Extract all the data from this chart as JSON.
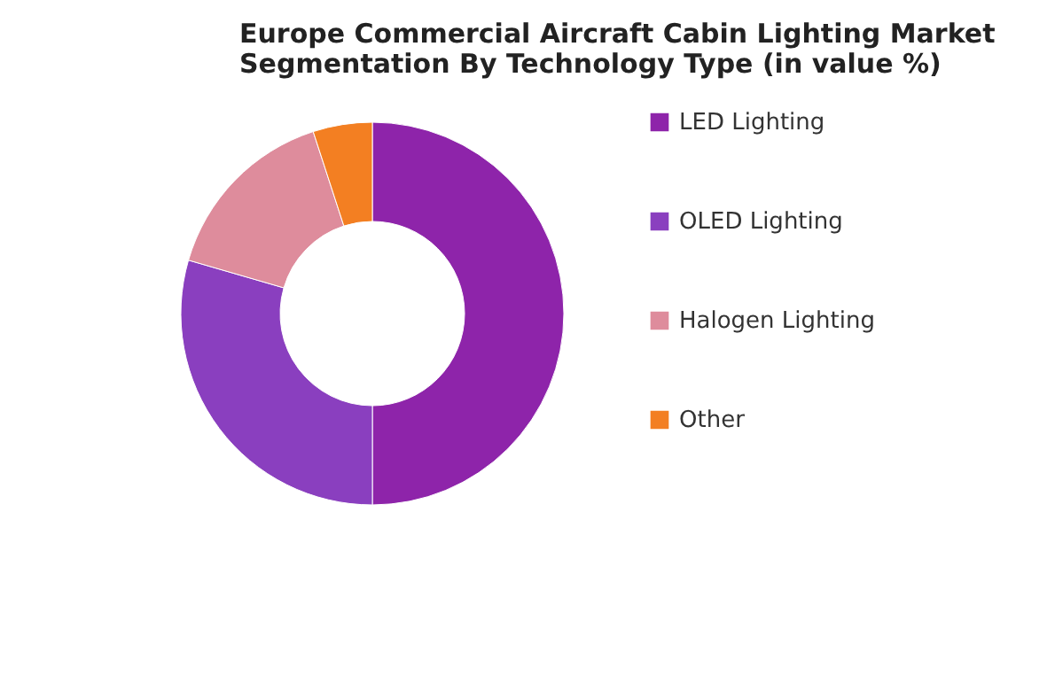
{
  "chart_data": {
    "type": "donut",
    "title": [
      "Europe Commercial Aircraft Cabin Lighting Market",
      "Segmentation By Technology Type (in value %)"
    ],
    "categories": [
      "LED Lighting",
      "OLED Lighting",
      "Halogen Lighting",
      "Other"
    ],
    "values": [
      50,
      29.5,
      15.5,
      5
    ],
    "colors": [
      "#8e24aa",
      "#8a3fbf",
      "#de8c9c",
      "#f37f22"
    ],
    "legend": "right"
  }
}
